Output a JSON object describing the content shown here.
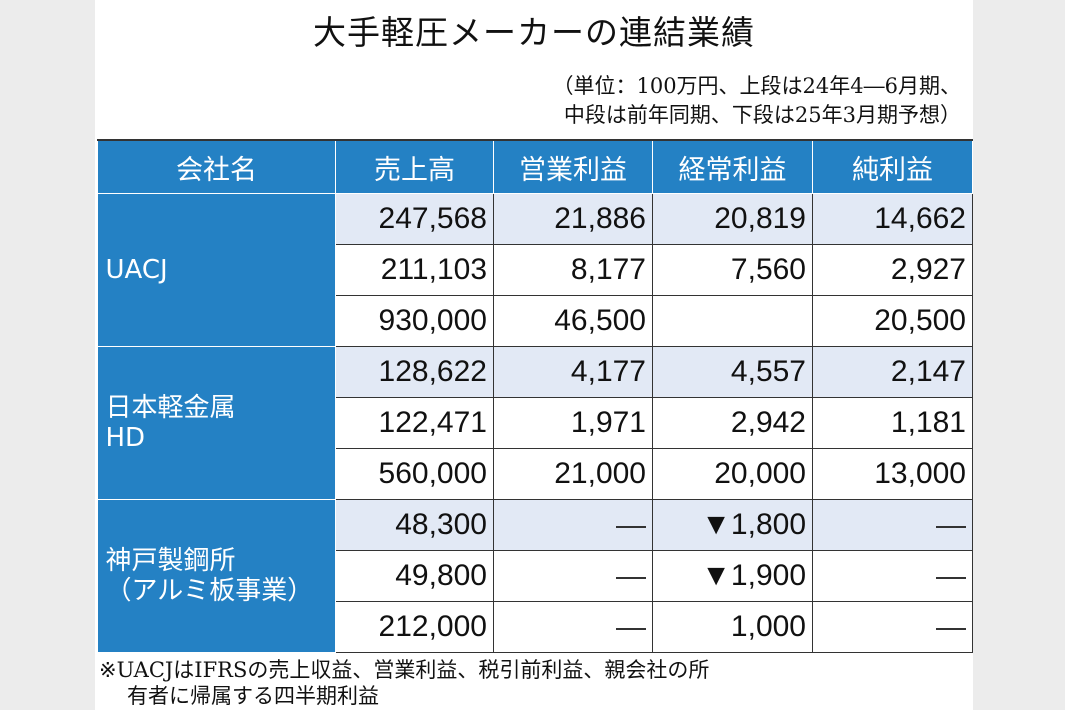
{
  "title": "大手軽圧メーカーの連結業績",
  "unit_line1": "（単位：100万円、上段は24年4―6月期、",
  "unit_line2": "中段は前年同期、下段は25年3月期予想）",
  "headers": [
    "会社名",
    "売上高",
    "営業利益",
    "経常利益",
    "純利益"
  ],
  "companies": [
    {
      "name": "UACJ",
      "rows": [
        [
          "247,568",
          "21,886",
          "20,819",
          "14,662"
        ],
        [
          "211,103",
          "8,177",
          "7,560",
          "2,927"
        ],
        [
          "930,000",
          "46,500",
          "",
          "20,500"
        ]
      ]
    },
    {
      "name_line1": "日本軽金属",
      "name_line2": "HD",
      "rows": [
        [
          "128,622",
          "4,177",
          "4,557",
          "2,147"
        ],
        [
          "122,471",
          "1,971",
          "2,942",
          "1,181"
        ],
        [
          "560,000",
          "21,000",
          "20,000",
          "13,000"
        ]
      ]
    },
    {
      "name_line1": "神戸製鋼所",
      "name_line2": "（アルミ板事業）",
      "rows": [
        [
          "48,300",
          "―",
          "▼1,800",
          "―"
        ],
        [
          "49,800",
          "―",
          "▼1,900",
          "―"
        ],
        [
          "212,000",
          "―",
          "1,000",
          "―"
        ]
      ]
    }
  ],
  "note_line1": "※UACJはIFRSの売上収益、営業利益、税引前利益、親会社の所",
  "note_line2": "有者に帰属する四半期利益"
}
